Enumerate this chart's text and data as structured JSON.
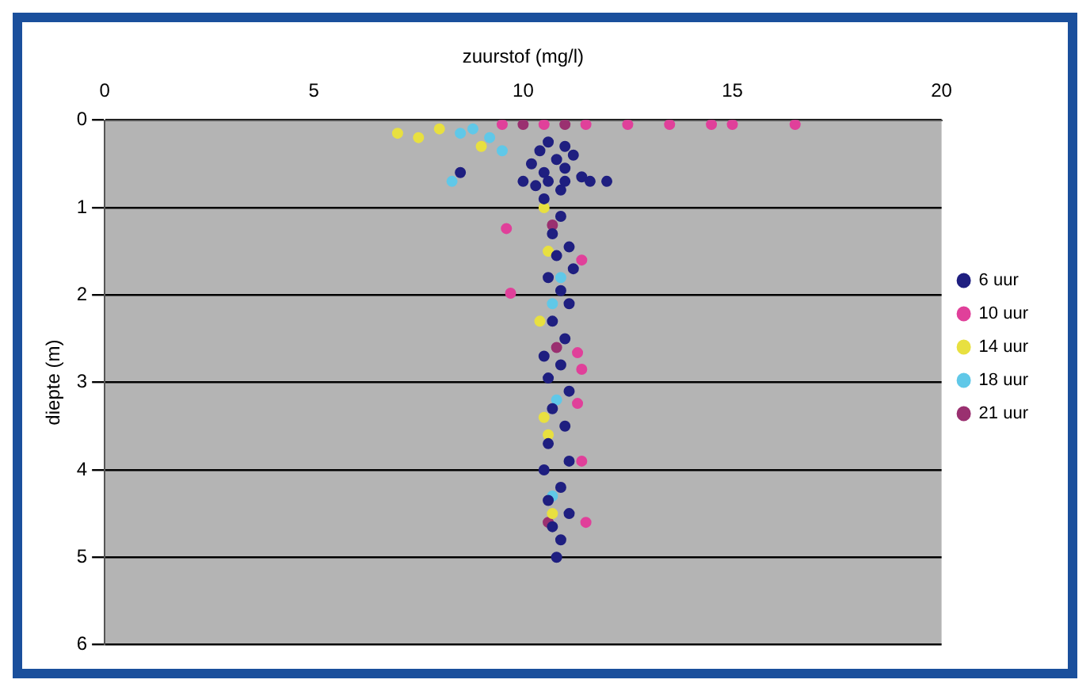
{
  "chart_data": {
    "type": "scatter",
    "xlabel": "zuurstof (mg/l)",
    "ylabel": "diepte (m)",
    "xlim": [
      0,
      20
    ],
    "xticks": [
      0,
      5,
      10,
      15,
      20
    ],
    "ylim": [
      6,
      0
    ],
    "yticks": [
      0,
      1,
      2,
      3,
      4,
      5,
      6
    ],
    "grid": "y",
    "legend": "right",
    "marker": "circle",
    "series": [
      {
        "name": "6 uur",
        "color": "#1f1f80",
        "x": [
          10.6,
          11.0,
          10.4,
          11.2,
          10.8,
          10.2,
          11.0,
          8.5,
          10.5,
          11.4,
          10.0,
          10.6,
          11.0,
          11.6,
          12.0,
          10.3,
          10.9,
          10.5,
          10.9,
          10.7,
          11.1,
          10.8,
          11.2,
          10.6,
          10.9,
          11.1,
          10.7,
          11.0,
          10.5,
          10.9,
          10.6,
          11.1,
          10.7,
          11.0,
          10.6,
          11.1,
          10.5,
          10.9,
          10.6,
          11.1,
          10.7,
          10.9,
          10.8
        ],
        "values": [
          0.25,
          0.3,
          0.35,
          0.4,
          0.45,
          0.5,
          0.55,
          0.6,
          0.6,
          0.65,
          0.7,
          0.7,
          0.7,
          0.7,
          0.7,
          0.75,
          0.8,
          0.9,
          1.1,
          1.3,
          1.45,
          1.55,
          1.7,
          1.8,
          1.95,
          2.1,
          2.3,
          2.5,
          2.7,
          2.8,
          2.95,
          3.1,
          3.3,
          3.5,
          3.7,
          3.9,
          4.0,
          4.2,
          4.35,
          4.5,
          4.65,
          4.8,
          5.0
        ]
      },
      {
        "name": "10 uur",
        "color": "#e0409a",
        "x": [
          9.5,
          10.5,
          11.5,
          12.5,
          13.5,
          14.5,
          15.0,
          16.5,
          9.6,
          11.4,
          9.7,
          11.3,
          11.4,
          11.3,
          11.4,
          11.5
        ],
        "values": [
          0.05,
          0.05,
          0.05,
          0.05,
          0.05,
          0.05,
          0.05,
          0.05,
          1.24,
          1.6,
          1.98,
          2.66,
          2.85,
          3.24,
          3.9,
          4.6
        ]
      },
      {
        "name": "14 uur",
        "color": "#e8e040",
        "x": [
          7.0,
          7.5,
          8.0,
          9.0,
          10.5,
          10.6,
          10.4,
          10.5,
          10.6,
          10.7
        ],
        "values": [
          0.15,
          0.2,
          0.1,
          0.3,
          1.0,
          1.5,
          2.3,
          3.4,
          3.6,
          4.5
        ]
      },
      {
        "name": "18 uur",
        "color": "#60c8e8",
        "x": [
          8.5,
          8.8,
          9.2,
          9.5,
          8.3,
          10.9,
          10.7,
          10.8,
          10.7
        ],
        "values": [
          0.15,
          0.1,
          0.2,
          0.35,
          0.7,
          1.8,
          2.1,
          3.2,
          4.3
        ]
      },
      {
        "name": "21 uur",
        "color": "#9a3070",
        "x": [
          10.0,
          11.0,
          10.6,
          10.8,
          10.7
        ],
        "values": [
          0.05,
          0.05,
          4.6,
          2.6,
          1.2
        ]
      }
    ]
  }
}
